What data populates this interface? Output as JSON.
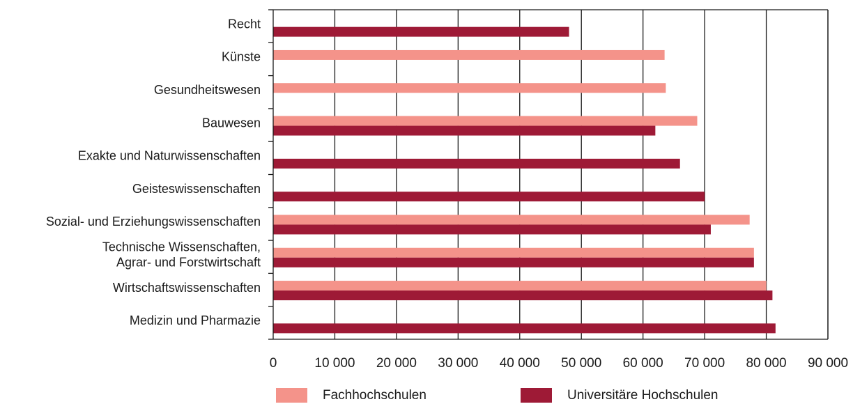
{
  "chart_data": {
    "type": "bar",
    "orientation": "horizontal",
    "categories": [
      [
        "Recht"
      ],
      [
        "Künste"
      ],
      [
        "Gesundheitswesen"
      ],
      [
        "Bauwesen"
      ],
      [
        "Exakte und Naturwissenschaften"
      ],
      [
        "Geisteswissenschaften"
      ],
      [
        "Sozial- und Erziehungswissenschaften"
      ],
      [
        "Technische Wissenschaften,",
        "Agrar- und Forstwirtschaft"
      ],
      [
        "Wirtschaftswissenschaften"
      ],
      [
        "Medizin und Pharmazie"
      ]
    ],
    "series": [
      {
        "name": "Fachhochschulen",
        "color": "#f4938a",
        "values": [
          null,
          63500,
          63700,
          68800,
          null,
          null,
          77300,
          78000,
          80000,
          null
        ]
      },
      {
        "name": "Universitäre Hochschulen",
        "color": "#9e1a36",
        "values": [
          48000,
          null,
          null,
          62000,
          66000,
          70000,
          71000,
          78000,
          81000,
          81500
        ]
      }
    ],
    "xlim": [
      0,
      90000
    ],
    "xticks": [
      0,
      10000,
      20000,
      30000,
      40000,
      50000,
      60000,
      70000,
      80000,
      90000
    ],
    "xtick_labels": [
      "0",
      "10 000",
      "20 000",
      "30 000",
      "40 000",
      "50 000",
      "60 000",
      "70 000",
      "80 000",
      "90 000"
    ],
    "grid": "vertical",
    "legend_position": "bottom",
    "title": "",
    "xlabel": "",
    "ylabel": ""
  }
}
